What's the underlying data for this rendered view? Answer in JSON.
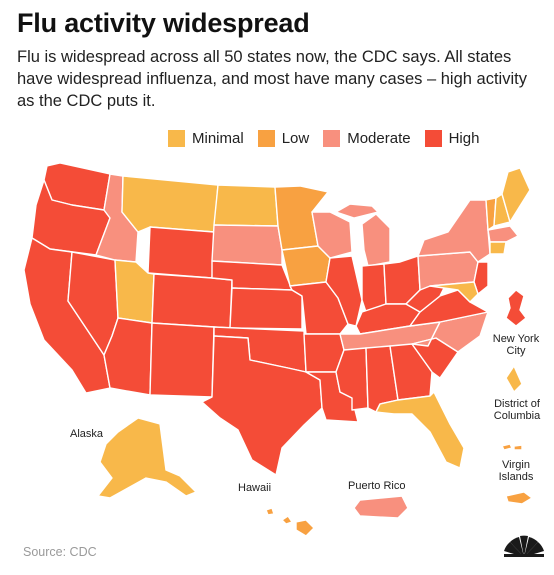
{
  "title": "Flu activity widespread",
  "subtitle": "Flu is widespread across all 50 states now, the CDC says. All states have widespread influenza, and most have many cases – high activity as the CDC puts it.",
  "legend": [
    {
      "label": "Minimal",
      "color": "#F8B84A"
    },
    {
      "label": "Low",
      "color": "#F8A141"
    },
    {
      "label": "Moderate",
      "color": "#F8907E"
    },
    {
      "label": "High",
      "color": "#F44C37"
    }
  ],
  "map_colors": {
    "high": "#F44C37",
    "moderate": "#F8907E",
    "low": "#F8A141",
    "minimal": "#F8B84A",
    "border": "#ffffff"
  },
  "regions": {
    "washington": "High",
    "oregon": "High",
    "california": "High",
    "nevada": "High",
    "idaho": "Moderate",
    "montana": "Minimal",
    "wyoming": "High",
    "utah": "Minimal",
    "arizona": "High",
    "colorado": "High",
    "new_mexico": "High",
    "north_dakota": "Minimal",
    "south_dakota": "Moderate",
    "nebraska": "High",
    "kansas": "High",
    "oklahoma": "High",
    "texas": "High",
    "minnesota": "Low",
    "iowa": "Low",
    "missouri": "High",
    "arkansas": "High",
    "louisiana": "High",
    "wisconsin": "Moderate",
    "illinois": "High",
    "michigan": "Moderate",
    "indiana": "High",
    "ohio": "High",
    "kentucky": "High",
    "tennessee": "Moderate",
    "mississippi": "High",
    "alabama": "High",
    "georgia": "High",
    "florida": "Minimal",
    "south_carolina": "High",
    "north_carolina": "Moderate",
    "virginia": "High",
    "west_virginia": "High",
    "pennsylvania": "Moderate",
    "new_york": "Moderate",
    "new_jersey": "High",
    "maryland": "Minimal",
    "vermont": "Low",
    "new_hampshire": "Minimal",
    "maine": "Minimal",
    "massachusetts": "Moderate",
    "connecticut": "Minimal",
    "alaska": "Minimal",
    "hawaii": "Low",
    "puerto_rico": "Moderate",
    "new_york_city": "High",
    "district_of_columbia": "Minimal",
    "virgin_islands": "Low"
  },
  "map_labels": {
    "new_york_city": [
      "New York",
      "City"
    ],
    "district_of_columbia": [
      "District of",
      "Columbia"
    ],
    "alaska": "Alaska",
    "hawaii": "Hawaii",
    "puerto_rico": "Puerto Rico",
    "virgin_islands": [
      "Virgin",
      "Islands"
    ]
  },
  "source": "Source: CDC",
  "logo": "nbc-peacock-icon"
}
